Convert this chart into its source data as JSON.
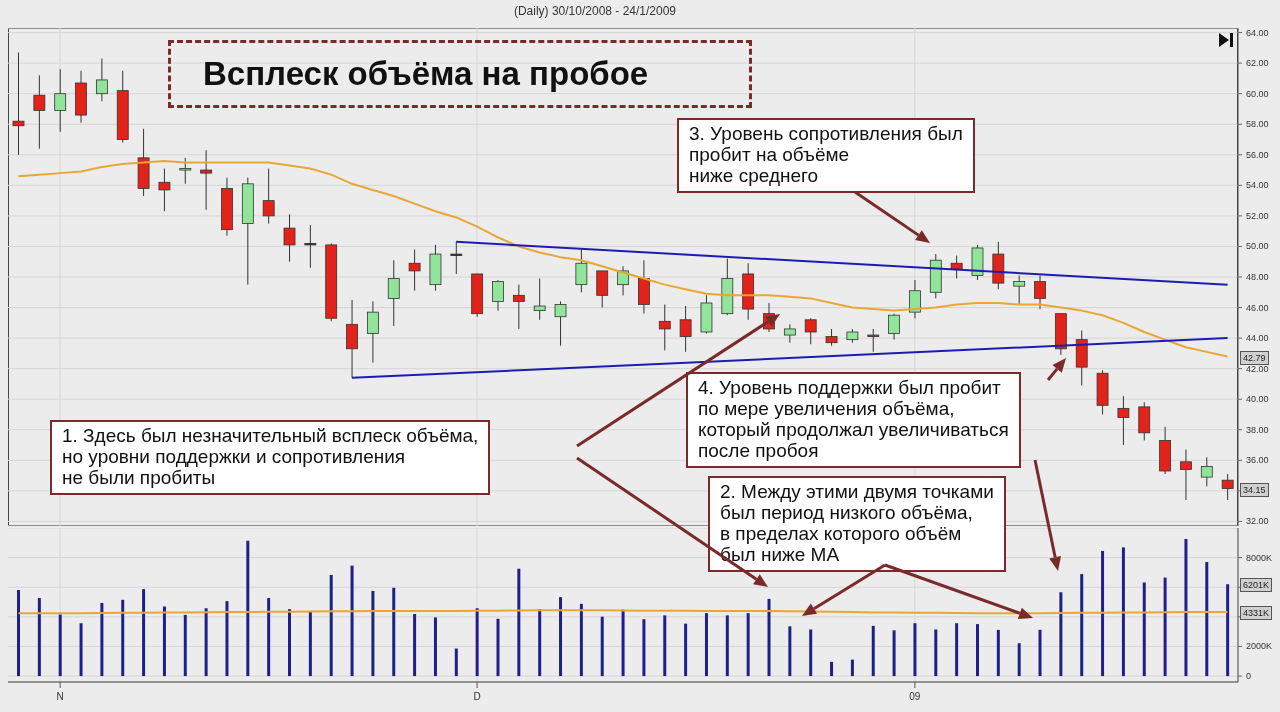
{
  "chart_data": [
    {
      "type": "candlestick",
      "title": "Всплеск объёма на пробое",
      "subtitle": "(Daily)  30/10/2008 - 24/1/2009",
      "categories": [
        null,
        null,
        null,
        null,
        null,
        null,
        null,
        null,
        null,
        null,
        null,
        null,
        null,
        null,
        null,
        null,
        null,
        null,
        null,
        null,
        null,
        null,
        null,
        null,
        null,
        null,
        null,
        null,
        null,
        null,
        null,
        null,
        null,
        null,
        null,
        null,
        null,
        null,
        null,
        null,
        null,
        null,
        null,
        null,
        null,
        null,
        null,
        null,
        null,
        null,
        null,
        null,
        null,
        null,
        null,
        null,
        null,
        null,
        null
      ],
      "ohlc": [
        [
          58.2,
          62.7,
          56.0,
          57.9
        ],
        [
          59.9,
          61.2,
          56.4,
          58.9
        ],
        [
          58.9,
          61.6,
          57.5,
          60.0
        ],
        [
          60.7,
          61.5,
          58.1,
          58.6
        ],
        [
          60.0,
          62.3,
          59.5,
          60.9
        ],
        [
          60.2,
          61.5,
          56.8,
          57.0
        ],
        [
          55.8,
          57.7,
          53.3,
          53.8
        ],
        [
          54.2,
          55.1,
          52.3,
          53.7
        ],
        [
          55.0,
          55.8,
          54.1,
          55.1
        ],
        [
          55.0,
          56.3,
          52.4,
          54.8
        ],
        [
          53.8,
          54.5,
          50.7,
          51.1
        ],
        [
          51.5,
          54.5,
          47.5,
          54.1
        ],
        [
          53.0,
          55.1,
          51.5,
          52.0
        ],
        [
          51.2,
          52.1,
          49.0,
          50.1
        ],
        [
          50.2,
          51.4,
          48.6,
          50.2
        ],
        [
          50.1,
          50.2,
          45.1,
          45.3
        ],
        [
          44.9,
          46.5,
          41.4,
          43.3
        ],
        [
          44.3,
          46.4,
          42.4,
          45.7
        ],
        [
          46.6,
          49.1,
          44.8,
          47.9
        ],
        [
          48.9,
          49.8,
          47.1,
          48.4
        ],
        [
          47.5,
          50.1,
          47.1,
          49.5
        ],
        [
          49.5,
          50.3,
          48.2,
          49.5
        ],
        [
          48.2,
          48.2,
          45.4,
          45.6
        ],
        [
          46.4,
          47.8,
          45.8,
          47.7
        ],
        [
          46.8,
          47.5,
          44.6,
          46.4
        ],
        [
          45.8,
          47.9,
          45.2,
          46.1
        ],
        [
          45.4,
          46.4,
          43.5,
          46.2
        ],
        [
          47.5,
          49.8,
          47.0,
          48.9
        ],
        [
          48.4,
          48.4,
          46.0,
          46.8
        ],
        [
          47.5,
          48.7,
          46.8,
          48.4
        ],
        [
          47.9,
          49.1,
          45.6,
          46.2
        ],
        [
          45.1,
          46.2,
          43.2,
          44.6
        ],
        [
          45.2,
          46.1,
          43.1,
          44.1
        ],
        [
          44.4,
          46.8,
          44.3,
          46.3
        ],
        [
          45.6,
          49.2,
          45.5,
          47.9
        ],
        [
          48.2,
          48.9,
          45.2,
          45.9
        ],
        [
          45.6,
          46.3,
          44.4,
          44.6
        ],
        [
          44.2,
          44.9,
          43.7,
          44.6
        ],
        [
          45.2,
          45.3,
          43.6,
          44.4
        ],
        [
          44.1,
          44.6,
          43.5,
          43.7
        ],
        [
          43.9,
          44.6,
          43.7,
          44.4
        ],
        [
          44.2,
          44.6,
          43.1,
          44.1
        ],
        [
          44.3,
          45.6,
          43.9,
          45.5
        ],
        [
          45.7,
          47.8,
          45.3,
          47.1
        ],
        [
          47.0,
          49.5,
          46.6,
          49.1
        ],
        [
          48.9,
          49.4,
          47.9,
          48.5
        ],
        [
          48.1,
          50.1,
          47.8,
          49.9
        ],
        [
          49.5,
          50.3,
          47.2,
          47.6
        ],
        [
          47.4,
          48.1,
          46.2,
          47.7
        ],
        [
          47.7,
          48.1,
          45.9,
          46.6
        ],
        [
          45.6,
          45.6,
          42.9,
          43.3
        ],
        [
          43.9,
          44.5,
          40.9,
          42.1
        ],
        [
          41.7,
          41.9,
          39.0,
          39.6
        ],
        [
          39.4,
          40.2,
          37.0,
          38.8
        ],
        [
          39.5,
          39.8,
          37.3,
          37.8
        ],
        [
          37.3,
          38.2,
          35.1,
          35.3
        ],
        [
          35.9,
          36.7,
          33.4,
          35.4
        ],
        [
          34.9,
          36.2,
          34.3,
          35.6
        ],
        [
          34.7,
          35.1,
          33.4,
          34.15
        ]
      ],
      "colors": [
        "#e2231a",
        "#e2231a",
        "#90e59a",
        "#e2231a",
        "#90e59a",
        "#e2231a",
        "#e2231a",
        "#e2231a",
        "#90e59a",
        "#e2231a",
        "#e2231a",
        "#90e59a",
        "#e2231a",
        "#e2231a",
        "#222222",
        "#e2231a",
        "#e2231a",
        "#90e59a",
        "#90e59a",
        "#e2231a",
        "#90e59a",
        "#222222",
        "#e2231a",
        "#90e59a",
        "#e2231a",
        "#90e59a",
        "#90e59a",
        "#90e59a",
        "#e2231a",
        "#90e59a",
        "#e2231a",
        "#e2231a",
        "#e2231a",
        "#90e59a",
        "#90e59a",
        "#e2231a",
        "#e2231a",
        "#90e59a",
        "#e2231a",
        "#e2231a",
        "#90e59a",
        "#e2231a",
        "#90e59a",
        "#90e59a",
        "#90e59a",
        "#e2231a",
        "#90e59a",
        "#e2231a",
        "#90e59a",
        "#e2231a",
        "#e2231a",
        "#e2231a",
        "#e2231a",
        "#e2231a",
        "#e2231a",
        "#e2231a",
        "#e2231a",
        "#90e59a",
        "#e2231a"
      ],
      "series": [
        {
          "type": "line",
          "color": "#e8a735",
          "values": [
            54.6,
            54.7,
            54.8,
            54.9,
            55.2,
            55.4,
            55.5,
            55.6,
            55.5,
            55.5,
            55.5,
            55.5,
            55.5,
            55.3,
            55.1,
            54.7,
            54.1,
            53.7,
            53.3,
            52.8,
            52.3,
            51.9,
            51.3,
            50.6,
            50.0,
            49.6,
            49.3,
            49.1,
            48.7,
            48.3,
            47.9,
            47.5,
            47.2,
            46.9,
            46.8,
            46.8,
            46.8,
            46.7,
            46.6,
            46.3,
            46.0,
            45.9,
            45.8,
            45.9,
            46.0,
            46.2,
            46.3,
            46.3,
            46.2,
            46.2,
            46.0,
            45.8,
            45.5,
            45.0,
            44.4,
            43.9,
            43.4,
            43.1,
            42.79
          ]
        },
        {
          "type": "line",
          "color": "#1c1cb4",
          "values": [
            null,
            null,
            null,
            null,
            null,
            null,
            null,
            null,
            null,
            null,
            null,
            null,
            null,
            null,
            null,
            null,
            null,
            null,
            null,
            null,
            null,
            50.3,
            null,
            null,
            null,
            null,
            null,
            null,
            null,
            null,
            null,
            null,
            null,
            null,
            null,
            null,
            null,
            null,
            null,
            null,
            null,
            null,
            null,
            null,
            null,
            null,
            null,
            null,
            null,
            null,
            null,
            null,
            null,
            null,
            null,
            null,
            null,
            null,
            47.5
          ]
        },
        {
          "type": "line",
          "color": "#1c1cb4",
          "values": [
            null,
            null,
            null,
            null,
            null,
            null,
            null,
            null,
            null,
            null,
            null,
            null,
            null,
            null,
            null,
            null,
            41.4,
            null,
            null,
            null,
            null,
            null,
            null,
            null,
            null,
            null,
            null,
            null,
            null,
            null,
            null,
            null,
            null,
            null,
            null,
            null,
            null,
            null,
            null,
            null,
            null,
            null,
            null,
            null,
            null,
            null,
            null,
            null,
            null,
            null,
            null,
            null,
            null,
            null,
            null,
            null,
            null,
            null,
            44.0
          ]
        }
      ],
      "ylim": [
        31.7,
        64.3
      ],
      "yticks": [
        {
          "value": 32,
          "label": "32.00"
        },
        {
          "value": 34,
          "label": null
        },
        {
          "value": 36,
          "label": "36.00"
        },
        {
          "value": 38,
          "label": "38.00"
        },
        {
          "value": 40,
          "label": "40.00"
        },
        {
          "value": 42,
          "label": "42.00"
        },
        {
          "value": 44,
          "label": "44.00"
        },
        {
          "value": 46,
          "label": "46.00"
        },
        {
          "value": 48,
          "label": "48.00"
        },
        {
          "value": 50,
          "label": "50.00"
        },
        {
          "value": 52,
          "label": "52.00"
        },
        {
          "value": 54,
          "label": "54.00"
        },
        {
          "value": 56,
          "label": "56.00"
        },
        {
          "value": 58,
          "label": "58.00"
        },
        {
          "value": 60,
          "label": "60.00"
        },
        {
          "value": 62,
          "label": "62.00"
        },
        {
          "value": 64,
          "label": "64.00"
        }
      ],
      "grid": true,
      "tick_labels": "y",
      "annotations": [
        "1. Здесь был незначительный всплеск объёма,\nно уровни поддержки и сопротивления\nне были пробиты",
        "2. Между этими двумя точками\nбыл период низкого объёма,\nв пределах которого объём\nбыл ниже МА",
        "3. Уровень сопротивления был\nпробит на объёме\nниже среднего",
        "4. Уровень поддержки был пробит\nпо мере увеличения объёма,\nкоторый продолжал увеличиваться\nпосле пробоя",
        {
          "text": "42.79",
          "y": 42.79
        },
        {
          "text": "34.15",
          "y": 34.15
        }
      ]
    },
    {
      "type": "bar",
      "categories": [
        null,
        null,
        "N",
        null,
        null,
        null,
        null,
        null,
        null,
        null,
        null,
        null,
        null,
        null,
        null,
        null,
        null,
        null,
        null,
        null,
        null,
        null,
        "D",
        null,
        null,
        null,
        null,
        null,
        null,
        null,
        null,
        null,
        null,
        null,
        null,
        null,
        null,
        null,
        null,
        null,
        null,
        null,
        null,
        "09",
        null,
        null,
        null,
        null,
        null,
        null,
        null,
        null,
        null,
        null,
        null,
        null,
        null,
        null,
        null
      ],
      "series": [
        {
          "type": "bar",
          "color": "#1f1f8a",
          "values": [
            5810,
            5270,
            4160,
            3570,
            4940,
            5150,
            5870,
            4700,
            4130,
            4580,
            5060,
            9140,
            5270,
            4520,
            4370,
            6830,
            7460,
            5750,
            5960,
            4190,
            3960,
            1860,
            4580,
            3870,
            7250,
            4520,
            5330,
            4880,
            4010,
            4490,
            3840,
            4100,
            3540,
            4250,
            4100,
            4250,
            5210,
            3360,
            3150,
            960,
            1110,
            3390,
            3090,
            3570,
            3150,
            3570,
            3510,
            3120,
            2220,
            3120,
            5660,
            6890,
            8450,
            8690,
            6320,
            6650,
            9260,
            7700,
            6201
          ]
        },
        {
          "type": "line",
          "color": "#e8a735",
          "values": [
            4250,
            4250,
            4250,
            4250,
            4260,
            4270,
            4280,
            4300,
            4300,
            4310,
            4320,
            4330,
            4340,
            4350,
            4360,
            4370,
            4380,
            4400,
            4400,
            4400,
            4400,
            4400,
            4410,
            4420,
            4430,
            4440,
            4440,
            4440,
            4440,
            4430,
            4420,
            4420,
            4410,
            4400,
            4400,
            4400,
            4390,
            4380,
            4360,
            4340,
            4320,
            4300,
            4290,
            4280,
            4270,
            4260,
            4250,
            4250,
            4250,
            4250,
            4260,
            4270,
            4280,
            4290,
            4300,
            4310,
            4320,
            4325,
            4331
          ]
        }
      ],
      "ylim": [
        -400,
        10000
      ],
      "yticks": [
        0,
        {
          "value": 2000,
          "label": "2000K"
        },
        {
          "value": 4000,
          "label": null
        },
        {
          "value": 6000,
          "label": null
        },
        {
          "value": 8000,
          "label": "8000K"
        }
      ],
      "grid": true,
      "annotations": [
        {
          "text": "6201K",
          "y": 6201
        },
        {
          "text": "4331K",
          "y": 4331
        }
      ]
    }
  ]
}
